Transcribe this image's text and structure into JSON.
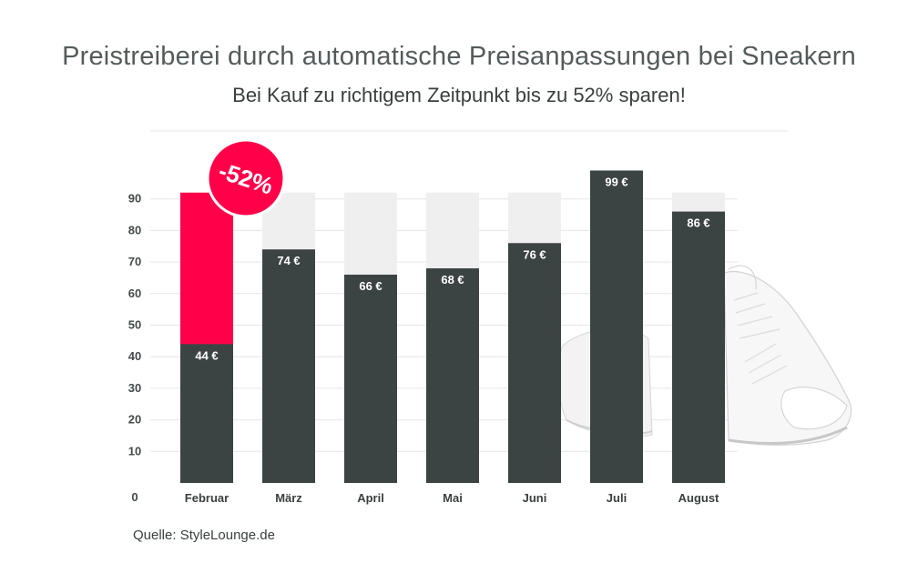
{
  "chart_data": {
    "type": "bar",
    "title": "Preistreiberei durch automatische Preisanpassungen bei Sneakern",
    "subtitle": "Bei Kauf zu richtigem Zeitpunkt bis zu 52% sparen!",
    "categories": [
      "Februar",
      "März",
      "April",
      "Mai",
      "Juni",
      "Juli",
      "August"
    ],
    "values": [
      44,
      74,
      66,
      68,
      76,
      99,
      86
    ],
    "data_labels": [
      "44 €",
      "74 €",
      "66 €",
      "68 €",
      "76 €",
      "99 €",
      "86 €"
    ],
    "highlight": {
      "category": "Februar",
      "max_value": 92,
      "label": "-52%"
    },
    "background_bar_value": 92,
    "ylim": [
      0,
      99
    ],
    "yticks": [
      0,
      10,
      20,
      30,
      40,
      50,
      60,
      70,
      80,
      90
    ],
    "xlabel": "",
    "ylabel": "",
    "grid": true,
    "colors": {
      "bar": "#3c4443",
      "highlight": "#ff0049",
      "background_bar": "#efefef",
      "grid": "#e6e6e6",
      "text": "#3a3f3f"
    }
  },
  "source": "Quelle: StyleLounge.de",
  "decoration": {
    "image": "white-sneakers-icon"
  }
}
